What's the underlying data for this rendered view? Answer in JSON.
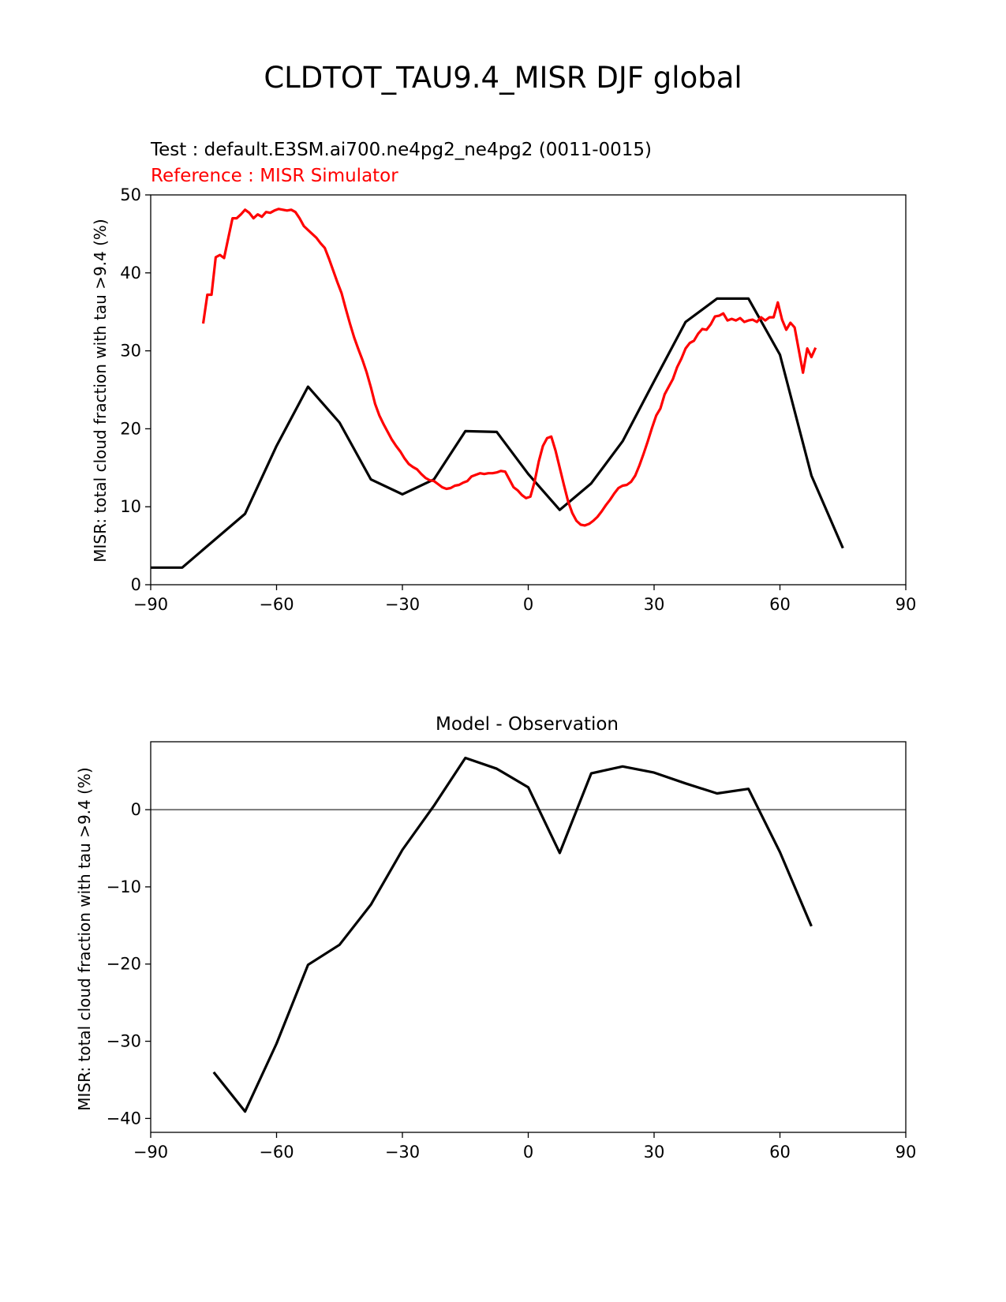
{
  "figure": {
    "title": "CLDTOT_TAU9.4_MISR DJF global",
    "background": "#ffffff"
  },
  "chart_data": [
    {
      "type": "line",
      "title": "",
      "test_label": "Test : default.E3SM.ai700.ne4pg2_ne4pg2 (0011-0015)",
      "reference_label": "Reference : MISR Simulator",
      "xlabel": "",
      "ylabel": "MISR: total cloud fraction with tau >9.4 (%)",
      "xlim": [
        -90,
        90
      ],
      "ylim": [
        0,
        50
      ],
      "xticks": [
        -90,
        -60,
        -30,
        0,
        30,
        60,
        90
      ],
      "yticks": [
        0,
        10,
        20,
        30,
        40,
        50
      ],
      "xtick_labels": [
        "−90",
        "−60",
        "−30",
        "0",
        "30",
        "60",
        "90"
      ],
      "ytick_labels": [
        "0",
        "10",
        "20",
        "30",
        "40",
        "50"
      ],
      "grid": false,
      "series": [
        {
          "color": "#000000",
          "x": [
            -90,
            -82.5,
            -67.5,
            -60,
            -52.5,
            -45,
            -37.5,
            -30,
            -22.5,
            -15,
            -7.5,
            0,
            7.5,
            15,
            22.5,
            30,
            37.5,
            45,
            52.5,
            60,
            67.5,
            75
          ],
          "y": [
            2.2,
            2.2,
            9.1,
            17.8,
            25.4,
            20.8,
            13.5,
            11.6,
            13.5,
            19.7,
            19.6,
            14.2,
            9.6,
            13.0,
            18.4,
            26.1,
            33.7,
            36.7,
            36.7,
            29.5,
            14.0,
            4.7
          ]
        },
        {
          "color": "#ff0000",
          "x": [
            -77.5,
            -76.5,
            -75.5,
            -74.5,
            -73.5,
            -72.5,
            -71.5,
            -70.5,
            -69.5,
            -68.5,
            -67.5,
            -66.5,
            -65.5,
            -64.5,
            -63.5,
            -62.5,
            -61.5,
            -60.5,
            -59.5,
            -58.5,
            -57.5,
            -56.5,
            -55.5,
            -54.5,
            -53.5,
            -52.5,
            -51.5,
            -50.5,
            -49.5,
            -48.5,
            -47.5,
            -46.5,
            -45.5,
            -44.5,
            -43.5,
            -42.5,
            -41.5,
            -40.5,
            -39.5,
            -38.5,
            -37.5,
            -36.5,
            -35.5,
            -34.5,
            -33.5,
            -32.5,
            -31.5,
            -30.5,
            -29.5,
            -28.5,
            -27.5,
            -26.5,
            -25.5,
            -24.5,
            -23.5,
            -22.5,
            -21.5,
            -20.5,
            -19.5,
            -18.5,
            -17.5,
            -16.5,
            -15.5,
            -14.5,
            -13.5,
            -12.5,
            -11.5,
            -10.5,
            -9.5,
            -8.5,
            -7.5,
            -6.5,
            -5.5,
            -4.5,
            -3.5,
            -2.5,
            -1.5,
            -0.5,
            0.5,
            1.5,
            2.5,
            3.5,
            4.5,
            5.5,
            6.5,
            7.5,
            8.5,
            9.5,
            10.5,
            11.5,
            12.5,
            13.5,
            14.5,
            15.5,
            16.5,
            17.5,
            18.5,
            19.5,
            20.5,
            21.5,
            22.5,
            23.5,
            24.5,
            25.5,
            26.5,
            27.5,
            28.5,
            29.5,
            30.5,
            31.5,
            32.5,
            33.5,
            34.5,
            35.5,
            36.5,
            37.5,
            38.5,
            39.5,
            40.5,
            41.5,
            42.5,
            43.5,
            44.5,
            45.5,
            46.5,
            47.5,
            48.5,
            49.5,
            50.5,
            51.5,
            52.5,
            53.5,
            54.5,
            55.5,
            56.5,
            57.5,
            58.5,
            59.5,
            60.5,
            61.5,
            62.5,
            63.5,
            64.5,
            65.5,
            66.5,
            67.5,
            68.5
          ],
          "y": [
            33.5,
            37.2,
            37.2,
            42.0,
            42.3,
            41.9,
            44.5,
            47.0,
            47.0,
            47.5,
            48.1,
            47.7,
            47.0,
            47.5,
            47.2,
            47.8,
            47.7,
            48.0,
            48.2,
            48.1,
            48.0,
            48.1,
            47.8,
            47.0,
            46.0,
            45.5,
            45.0,
            44.5,
            43.8,
            43.2,
            41.8,
            40.3,
            38.8,
            37.4,
            35.4,
            33.5,
            31.7,
            30.2,
            28.8,
            27.2,
            25.3,
            23.2,
            21.7,
            20.6,
            19.6,
            18.6,
            17.8,
            17.1,
            16.2,
            15.5,
            15.1,
            14.8,
            14.2,
            13.7,
            13.4,
            13.3,
            12.9,
            12.5,
            12.3,
            12.4,
            12.7,
            12.8,
            13.1,
            13.3,
            13.9,
            14.1,
            14.3,
            14.2,
            14.3,
            14.3,
            14.4,
            14.6,
            14.5,
            13.5,
            12.5,
            12.1,
            11.5,
            11.1,
            11.3,
            13.2,
            15.8,
            17.8,
            18.8,
            19.0,
            17.2,
            15.0,
            12.8,
            10.7,
            9.2,
            8.2,
            7.7,
            7.6,
            7.8,
            8.2,
            8.7,
            9.4,
            10.2,
            10.9,
            11.7,
            12.4,
            12.7,
            12.8,
            13.2,
            14.0,
            15.3,
            16.8,
            18.4,
            20.1,
            21.7,
            22.6,
            24.4,
            25.4,
            26.4,
            27.9,
            29.0,
            30.3,
            31.0,
            31.3,
            32.2,
            32.8,
            32.7,
            33.4,
            34.4,
            34.5,
            34.8,
            33.9,
            34.1,
            33.9,
            34.2,
            33.7,
            33.9,
            34.0,
            33.7,
            34.3,
            33.9,
            34.3,
            34.3,
            36.2,
            34.0,
            32.7,
            33.6,
            33.0,
            30.1,
            27.2,
            30.3,
            29.2,
            30.4
          ]
        }
      ]
    },
    {
      "type": "line",
      "title": "Model - Observation",
      "xlabel": "",
      "ylabel": "MISR: total cloud fraction with tau >9.4 (%)",
      "xlim": [
        -90,
        90
      ],
      "ylim": [
        -41.8,
        8.8
      ],
      "xticks": [
        -90,
        -60,
        -30,
        0,
        30,
        60,
        90
      ],
      "yticks": [
        -40,
        -30,
        -20,
        -10,
        0
      ],
      "xtick_labels": [
        "−90",
        "−60",
        "−30",
        "0",
        "30",
        "60",
        "90"
      ],
      "ytick_labels": [
        "−40",
        "−30",
        "−20",
        "−10",
        "0"
      ],
      "grid": false,
      "zero_line": {
        "value": 0,
        "color": "#808080"
      },
      "series": [
        {
          "color": "#000000",
          "x": [
            -75,
            -67.5,
            -60,
            -52.5,
            -45,
            -37.5,
            -30,
            -22.5,
            -15,
            -7.5,
            0,
            7.5,
            15,
            22.5,
            30,
            37.5,
            45,
            52.5,
            60,
            67.5
          ],
          "y": [
            -34.0,
            -39.1,
            -30.3,
            -20.1,
            -17.5,
            -12.3,
            -5.2,
            0.5,
            6.7,
            5.3,
            2.9,
            -5.6,
            4.7,
            5.6,
            4.8,
            3.4,
            2.1,
            2.7,
            -5.5,
            -15.1
          ]
        }
      ]
    }
  ]
}
